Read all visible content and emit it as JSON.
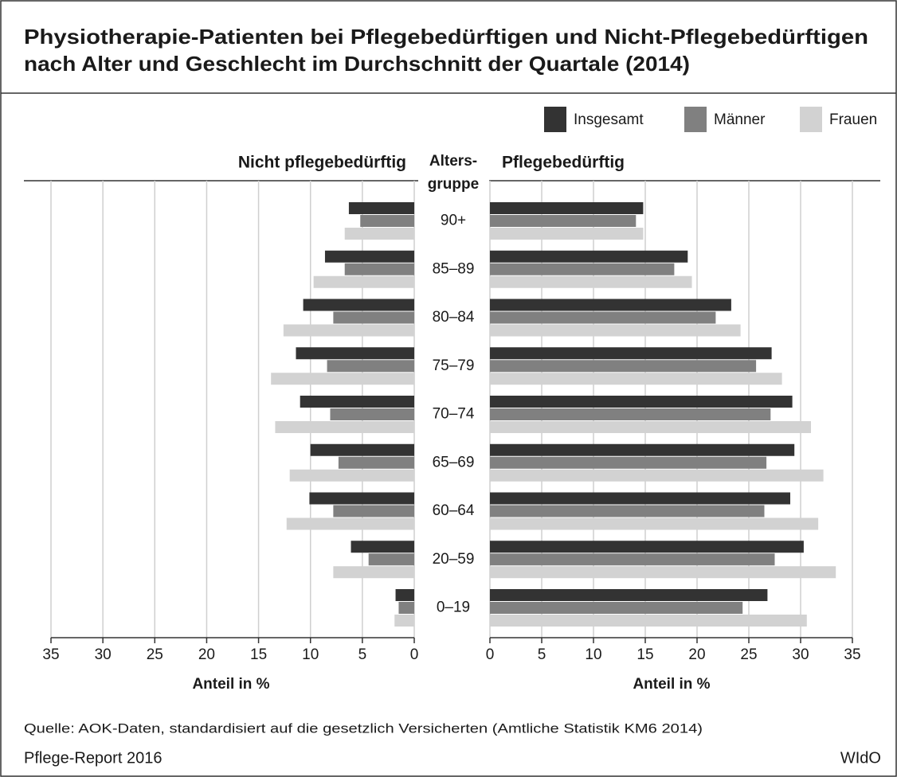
{
  "chart_data": {
    "type": "bar",
    "title": [
      "Physiotherapie-Patienten bei Pflegebedürftigen und Nicht-Pflegebedürftigen",
      "nach Alter und Geschlecht im Durchschnitt der Quartale (2014)"
    ],
    "category_label": [
      "Alters-",
      "gruppe"
    ],
    "categories": [
      "90+",
      "85–89",
      "80–84",
      "75–79",
      "70–74",
      "65–69",
      "60–64",
      "20–59",
      "0–19"
    ],
    "series": [
      {
        "name": "Insgesamt",
        "color": "#333333"
      },
      {
        "name": "Männer",
        "color": "#808080"
      },
      {
        "name": "Frauen",
        "color": "#d2d2d2"
      }
    ],
    "panels": [
      {
        "title": "Nicht pflegebedürftig",
        "xlabel": "Anteil in %",
        "reversed": true,
        "xlim": [
          0,
          35
        ],
        "xticks": [
          0,
          5,
          10,
          15,
          20,
          25,
          30,
          35
        ],
        "series": [
          {
            "values": [
              6.3,
              8.6,
              10.7,
              11.4,
              11.0,
              10.0,
              10.1,
              6.1,
              1.8
            ]
          },
          {
            "values": [
              5.2,
              6.7,
              7.8,
              8.4,
              8.1,
              7.3,
              7.8,
              4.4,
              1.5
            ]
          },
          {
            "values": [
              6.7,
              9.7,
              12.6,
              13.8,
              13.4,
              12.0,
              12.3,
              7.8,
              1.9
            ]
          }
        ]
      },
      {
        "title": "Pflegebedürftig",
        "xlabel": "Anteil in %",
        "reversed": false,
        "xlim": [
          0,
          35
        ],
        "xticks": [
          0,
          5,
          10,
          15,
          20,
          25,
          30,
          35
        ],
        "series": [
          {
            "values": [
              14.8,
              19.1,
              23.3,
              27.2,
              29.2,
              29.4,
              29.0,
              30.3,
              26.8
            ]
          },
          {
            "values": [
              14.1,
              17.8,
              21.8,
              25.7,
              27.1,
              26.7,
              26.5,
              27.5,
              24.4
            ]
          },
          {
            "values": [
              14.8,
              19.5,
              24.2,
              28.2,
              31.0,
              32.2,
              31.7,
              33.4,
              30.6
            ]
          }
        ]
      }
    ],
    "source": "Quelle: AOK-Daten, standardisiert auf die gesetzlich Versicherten (Amtliche Statistik KM6 2014)",
    "footer_left": "Pflege-Report 2016",
    "footer_right": "WIdO"
  }
}
